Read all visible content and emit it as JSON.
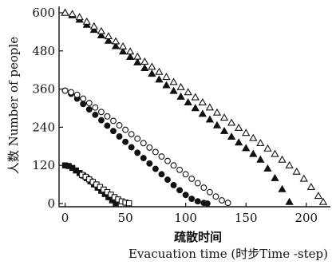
{
  "chart_data": {
    "type": "scatter",
    "title": "",
    "xlabel_cn": "疏散时间",
    "xlabel_en": "Evacuation time (时步Time -step)",
    "ylabel": "人数 Number of people",
    "xlim": [
      -5,
      220
    ],
    "ylim": [
      -10,
      620
    ],
    "x_ticks": [
      "0",
      "50",
      "100",
      "150",
      "200"
    ],
    "x_tick_values": [
      0,
      50,
      100,
      150,
      200
    ],
    "y_ticks": [
      "0",
      "120",
      "240",
      "360",
      "480",
      "600"
    ],
    "y_tick_values": [
      0,
      120,
      240,
      360,
      480,
      600
    ],
    "grid": false,
    "legend": "none",
    "series": [
      {
        "marker": "square-filled",
        "x": [
          0,
          3,
          6,
          9,
          12,
          15,
          18,
          21,
          24,
          27,
          30,
          33,
          36,
          39,
          42
        ],
        "y": [
          120,
          118,
          112,
          104,
          96,
          88,
          80,
          70,
          60,
          50,
          40,
          30,
          20,
          10,
          1
        ]
      },
      {
        "marker": "square-open",
        "x": [
          14,
          17,
          20,
          23,
          26,
          29,
          32,
          35,
          38,
          41,
          44,
          47,
          50,
          53
        ],
        "y": [
          90,
          84,
          76,
          68,
          60,
          52,
          44,
          36,
          28,
          20,
          13,
          7,
          3,
          1
        ]
      },
      {
        "marker": "circle-filled",
        "x": [
          0,
          5,
          10,
          15,
          20,
          25,
          30,
          35,
          40,
          45,
          50,
          55,
          60,
          65,
          70,
          75,
          80,
          85,
          90,
          95,
          100,
          105,
          110,
          115,
          118
        ],
        "y": [
          355,
          345,
          330,
          313,
          296,
          279,
          262,
          245,
          228,
          211,
          194,
          177,
          160,
          143,
          126,
          109,
          92,
          75,
          58,
          42,
          27,
          15,
          7,
          2,
          0
        ]
      },
      {
        "marker": "circle-open",
        "x": [
          0,
          5,
          10,
          15,
          20,
          25,
          30,
          35,
          40,
          45,
          50,
          55,
          60,
          65,
          70,
          75,
          80,
          85,
          90,
          95,
          100,
          105,
          110,
          115,
          120,
          125,
          130,
          135
        ],
        "y": [
          355,
          350,
          342,
          330,
          316,
          302,
          288,
          274,
          260,
          246,
          232,
          218,
          204,
          190,
          176,
          162,
          148,
          134,
          120,
          106,
          92,
          78,
          64,
          50,
          36,
          22,
          10,
          2
        ]
      },
      {
        "marker": "triangle-filled",
        "x": [
          0,
          6,
          12,
          18,
          24,
          30,
          36,
          42,
          48,
          54,
          60,
          66,
          72,
          78,
          84,
          90,
          96,
          102,
          108,
          114,
          120,
          126,
          132,
          138,
          144,
          150,
          156,
          162,
          168,
          174,
          180,
          186
        ],
        "y": [
          600,
          592,
          578,
          562,
          546,
          529,
          512,
          495,
          478,
          461,
          444,
          426,
          408,
          390,
          372,
          354,
          336,
          318,
          300,
          282,
          264,
          246,
          228,
          210,
          192,
          174,
          156,
          138,
          110,
          80,
          45,
          5
        ]
      },
      {
        "marker": "triangle-open",
        "x": [
          0,
          6,
          12,
          18,
          24,
          30,
          36,
          42,
          48,
          54,
          60,
          66,
          72,
          78,
          84,
          90,
          96,
          102,
          108,
          114,
          120,
          126,
          132,
          138,
          144,
          150,
          156,
          162,
          168,
          174,
          180,
          186,
          192,
          198,
          204,
          210,
          214
        ],
        "y": [
          600,
          596,
          586,
          572,
          557,
          542,
          526,
          510,
          494,
          478,
          462,
          446,
          430,
          414,
          398,
          382,
          366,
          350,
          334,
          318,
          302,
          286,
          270,
          254,
          238,
          222,
          206,
          190,
          173,
          156,
          138,
          120,
          100,
          78,
          52,
          24,
          5
        ]
      }
    ]
  }
}
